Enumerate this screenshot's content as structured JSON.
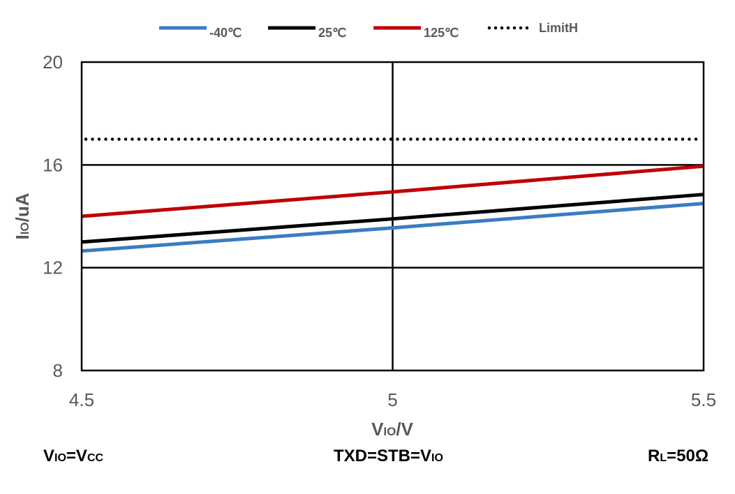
{
  "chart_data": {
    "type": "line",
    "xlabel": {
      "main": "V",
      "sub": "IO",
      "unit": "/V"
    },
    "ylabel": {
      "main": "I",
      "sub": "IO",
      "unit": "/uA"
    },
    "xlim": [
      4.5,
      5.5
    ],
    "ylim": [
      8,
      20
    ],
    "xticks": [
      4.5,
      5,
      5.5
    ],
    "xtick_labels": [
      "4.5",
      "5",
      "5.5"
    ],
    "yticks": [
      8,
      12,
      16,
      20
    ],
    "ytick_labels": [
      "8",
      "12",
      "16",
      "20"
    ],
    "grid": true,
    "legend_position": "top",
    "series": [
      {
        "name": "-40℃",
        "color": "#3a7cc2",
        "style": "solid",
        "x": [
          4.5,
          5,
          5.5
        ],
        "y": [
          12.65,
          13.55,
          14.5
        ]
      },
      {
        "name": "25℃",
        "color": "#000000",
        "style": "solid",
        "x": [
          4.5,
          5,
          5.5
        ],
        "y": [
          13.0,
          13.9,
          14.85
        ]
      },
      {
        "name": "125℃",
        "color": "#c00000",
        "style": "solid",
        "x": [
          4.5,
          5,
          5.5
        ],
        "y": [
          14.0,
          14.95,
          15.95
        ]
      },
      {
        "name": "LimitH",
        "color": "#000000",
        "style": "dotted",
        "x": [
          4.5,
          5.5
        ],
        "y": [
          17.0,
          17.0
        ]
      }
    ]
  },
  "notes": {
    "left": {
      "a": "V",
      "a_sub": "IO",
      "b": "=V",
      "b_sub": "CC"
    },
    "center": {
      "a": "TXD=STB=V",
      "a_sub": "IO"
    },
    "right": {
      "a": "R",
      "a_sub": "L",
      "b": "=50Ω"
    }
  }
}
